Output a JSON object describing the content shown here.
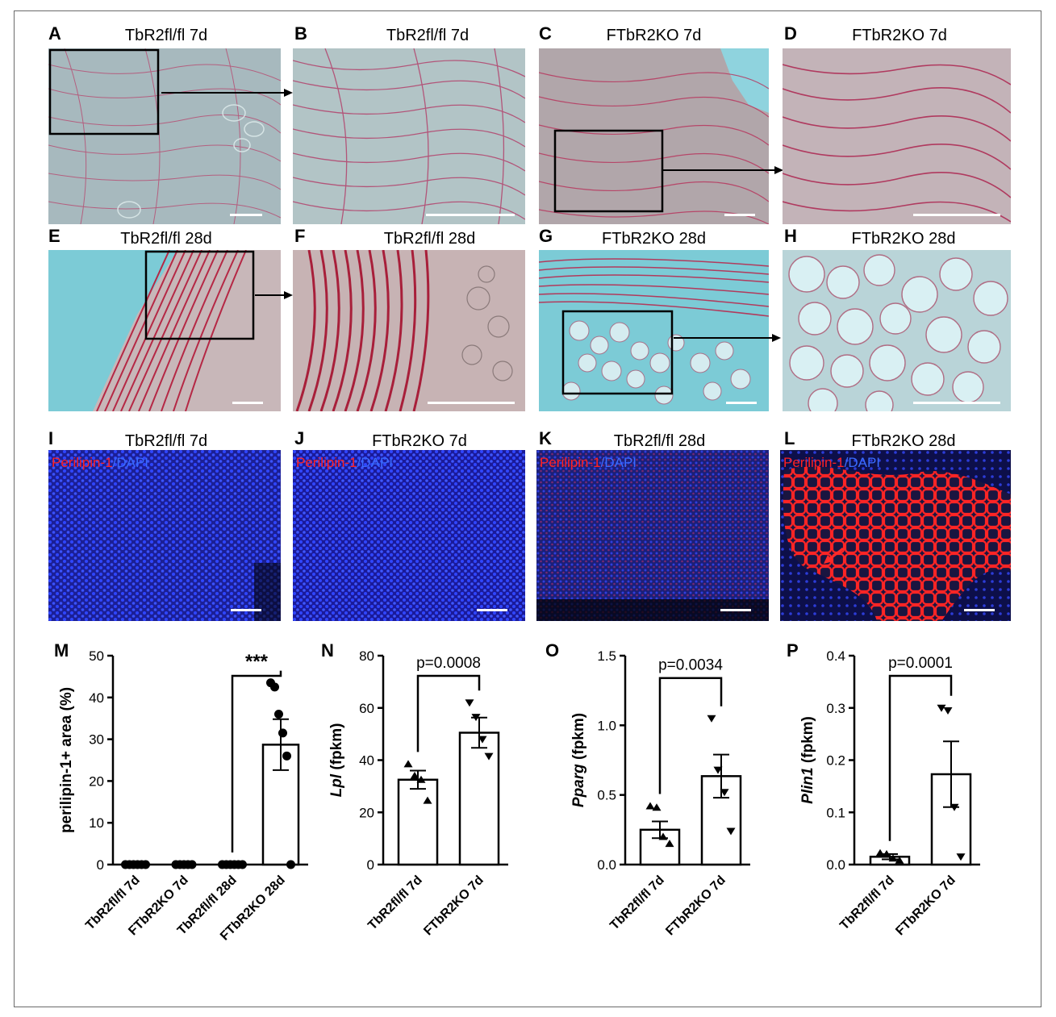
{
  "panel_letters": [
    "A",
    "B",
    "C",
    "D",
    "E",
    "F",
    "G",
    "H",
    "I",
    "J",
    "K",
    "L",
    "M",
    "N",
    "O",
    "P"
  ],
  "image_titles": {
    "A": "TbR2fl/fl 7d",
    "B": "TbR2fl/fl 7d",
    "C": "FTbR2KO 7d",
    "D": "FTbR2KO 7d",
    "E": "TbR2fl/fl 28d",
    "F": "TbR2fl/fl 28d",
    "G": "FTbR2KO 28d",
    "H": "FTbR2KO 28d",
    "I": "TbR2fl/fl 7d",
    "J": "FTbR2KO 7d",
    "K": "TbR2fl/fl 28d",
    "L": "FTbR2KO 28d"
  },
  "fluor_label": {
    "stain": "Perilipin-1",
    "sep": "/",
    "dapi": "DAPI"
  },
  "colors": {
    "collagen": "#c0304e",
    "background_blue": "#7ccbd6",
    "dapi": "#1e2bd8",
    "perilipin": "#ff2020"
  },
  "chart_data": [
    {
      "panel": "M",
      "type": "bar",
      "categories": [
        "TbR2fl/fl 7d",
        "FTbR2KO 7d",
        "TbR2fl/fl 28d",
        "FTbR2KO 28d"
      ],
      "values": [
        0,
        0,
        0,
        28.7
      ],
      "errors": [
        0,
        0,
        0,
        6.1
      ],
      "points": [
        [
          0,
          0,
          0,
          0,
          0,
          0
        ],
        [
          0,
          0,
          0,
          0,
          0
        ],
        [
          0,
          0,
          0,
          0,
          0,
          0
        ],
        [
          43.5,
          42.5,
          36,
          31.5,
          26,
          0
        ]
      ],
      "ylabel": "perilipin-1+ area (%)",
      "ylim": [
        0,
        50
      ],
      "yticks": [
        "0",
        "10",
        "20",
        "30",
        "40",
        "50"
      ],
      "annotation": "***"
    },
    {
      "panel": "N",
      "type": "bar",
      "categories": [
        "TbR2fl/fl 7d",
        "FTbR2KO 7d"
      ],
      "values": [
        32.5,
        50.5
      ],
      "errors": [
        3.5,
        5.8
      ],
      "points": [
        [
          38.5,
          34,
          32.5,
          24.5
        ],
        [
          62,
          56.5,
          48,
          41.5
        ]
      ],
      "ylabel": "Lpl (fpkm)",
      "ylim": [
        0,
        80
      ],
      "yticks": [
        "0",
        "20",
        "40",
        "60",
        "80"
      ],
      "annotation": "p=0.0008"
    },
    {
      "panel": "O",
      "type": "bar",
      "categories": [
        "TbR2fl/fl 7d",
        "FTbR2KO 7d"
      ],
      "values": [
        0.25,
        0.635
      ],
      "errors": [
        0.06,
        0.155
      ],
      "points": [
        [
          0.42,
          0.41,
          0.2,
          0.15
        ],
        [
          1.05,
          0.68,
          0.52,
          0.24
        ]
      ],
      "ylabel": "Pparg (fpkm)",
      "ylim": [
        0,
        1.5
      ],
      "yticks": [
        "0.0",
        "0.5",
        "1.0",
        "1.5"
      ],
      "annotation": "p=0.0034"
    },
    {
      "panel": "P",
      "type": "bar",
      "categories": [
        "TbR2fl/fl 7d",
        "FTbR2KO 7d"
      ],
      "values": [
        0.015,
        0.173
      ],
      "errors": [
        0.005,
        0.063
      ],
      "points": [
        [
          0.022,
          0.02,
          0.012,
          0.008
        ],
        [
          0.3,
          0.295,
          0.11,
          0.015
        ]
      ],
      "ylabel": "Plin1 (fpkm)",
      "ylim": [
        0,
        0.4
      ],
      "yticks": [
        "0.0",
        "0.1",
        "0.2",
        "0.3",
        "0.4"
      ],
      "annotation": "p=0.0001"
    }
  ]
}
